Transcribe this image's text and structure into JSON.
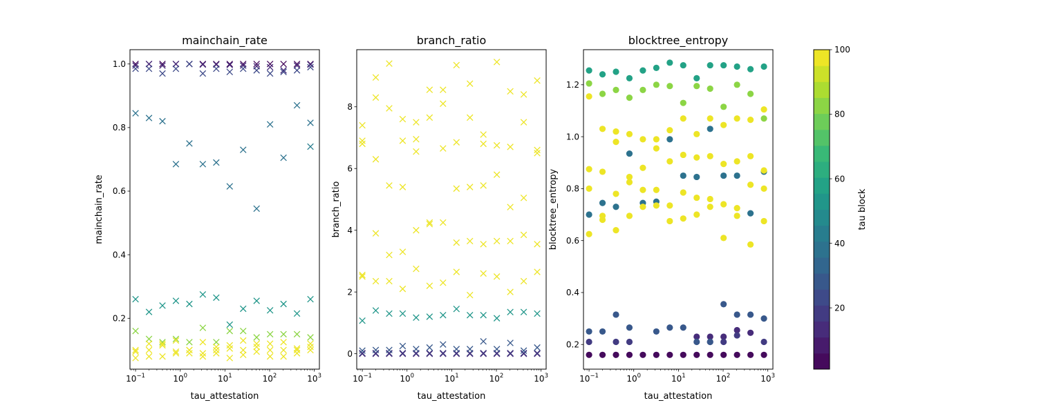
{
  "chart_data": [
    {
      "type": "scatter",
      "title": "mainchain_rate",
      "xlabel": "tau_attestation",
      "ylabel": "mainchain_rate",
      "xscale": "log",
      "xlim": [
        0.075,
        1300
      ],
      "ylim": [
        0.04,
        1.045
      ],
      "marker": "x",
      "x_ticks": [
        {
          "value": 0.1,
          "base": "10",
          "exp": "−1"
        },
        {
          "value": 1,
          "base": "10",
          "exp": "0"
        },
        {
          "value": 10,
          "base": "10",
          "exp": "1"
        },
        {
          "value": 100,
          "base": "10",
          "exp": "2"
        },
        {
          "value": 1000,
          "base": "10",
          "exp": "3"
        }
      ],
      "y_ticks": [
        {
          "value": 0.2,
          "label": "0.2"
        },
        {
          "value": 0.4,
          "label": "0.4"
        },
        {
          "value": 0.6,
          "label": "0.6"
        },
        {
          "value": 0.8,
          "label": "0.8"
        },
        {
          "value": 1.0,
          "label": "1.0"
        }
      ],
      "x": [
        0.1,
        0.2,
        0.4,
        0.8,
        1.6,
        3.2,
        6.4,
        12.8,
        25.6,
        51.2,
        102.4,
        204.8,
        409.6,
        819.2
      ],
      "series": [
        {
          "tau_block": 5,
          "values": [
            1.0,
            1.0,
            1.0,
            1.0,
            1.0,
            1.0,
            1.0,
            1.0,
            1.0,
            1.0,
            1.0,
            1.0,
            1.0,
            1.0
          ]
        },
        {
          "tau_block": 15,
          "values": [
            0.995,
            1.0,
            0.995,
            1.0,
            1.0,
            0.998,
            0.998,
            0.997,
            0.995,
            0.993,
            0.99,
            0.98,
            0.995,
            0.998
          ]
        },
        {
          "tau_block": 25,
          "values": [
            0.985,
            0.985,
            0.97,
            0.985,
            1.0,
            0.97,
            0.985,
            0.975,
            0.985,
            0.98,
            0.97,
            0.975,
            0.98,
            0.99
          ]
        },
        {
          "tau_block": 38,
          "values": [
            0.845,
            0.83,
            0.82,
            0.685,
            0.75,
            0.685,
            0.69,
            0.615,
            0.73,
            0.545,
            0.81,
            0.705,
            0.87,
            0.815
          ]
        },
        {
          "tau_block": 42,
          "values": [
            null,
            null,
            null,
            null,
            null,
            null,
            null,
            null,
            null,
            null,
            null,
            null,
            null,
            0.74
          ]
        },
        {
          "tau_block": 55,
          "values": [
            0.26,
            0.22,
            0.24,
            0.255,
            0.245,
            0.275,
            0.265,
            0.18,
            0.23,
            0.255,
            0.225,
            0.245,
            0.215,
            0.26
          ]
        },
        {
          "tau_block": 85,
          "values": [
            0.16,
            0.135,
            0.125,
            0.135,
            0.125,
            0.17,
            0.125,
            0.16,
            0.16,
            0.14,
            0.15,
            0.15,
            0.15,
            0.14
          ]
        },
        {
          "tau_block": 98,
          "values": [
            0.1,
            0.12,
            0.115,
            0.13,
            0.1,
            0.125,
            0.1,
            0.115,
            0.13,
            0.12,
            0.12,
            0.125,
            0.105,
            0.12
          ]
        },
        {
          "tau_block": 100,
          "values": [
            0.095,
            0.1,
            0.12,
            0.095,
            0.09,
            0.09,
            0.11,
            0.105,
            0.1,
            0.11,
            0.1,
            0.1,
            0.1,
            0.11
          ]
        },
        {
          "tau_block": 100,
          "values": [
            0.075,
            0.08,
            0.08,
            0.09,
            0.1,
            0.08,
            0.09,
            0.075,
            0.085,
            0.095,
            0.08,
            0.08,
            0.09,
            0.1
          ]
        }
      ]
    },
    {
      "type": "scatter",
      "title": "branch_ratio",
      "xlabel": "tau_attestation",
      "ylabel": "branch_ratio",
      "xscale": "log",
      "xlim": [
        0.075,
        1300
      ],
      "ylim": [
        -0.5,
        9.85
      ],
      "marker": "x",
      "x_ticks": [
        {
          "value": 0.1,
          "base": "10",
          "exp": "−1"
        },
        {
          "value": 1,
          "base": "10",
          "exp": "0"
        },
        {
          "value": 10,
          "base": "10",
          "exp": "1"
        },
        {
          "value": 100,
          "base": "10",
          "exp": "2"
        },
        {
          "value": 1000,
          "base": "10",
          "exp": "3"
        }
      ],
      "y_ticks": [
        {
          "value": 0,
          "label": "0"
        },
        {
          "value": 2,
          "label": "2"
        },
        {
          "value": 4,
          "label": "4"
        },
        {
          "value": 6,
          "label": "6"
        },
        {
          "value": 8,
          "label": "8"
        }
      ],
      "x": [
        0.1,
        0.2,
        0.4,
        0.8,
        1.6,
        3.2,
        6.4,
        12.8,
        25.6,
        51.2,
        102.4,
        204.8,
        409.6,
        819.2
      ],
      "series": [
        {
          "tau_block": 5,
          "values": [
            0.0,
            0.0,
            0.0,
            0.0,
            0.0,
            0.0,
            0.0,
            0.0,
            0.0,
            0.0,
            0.0,
            0.0,
            0.0,
            0.0
          ]
        },
        {
          "tau_block": 15,
          "values": [
            0.0,
            0.0,
            0.0,
            0.0,
            0.0,
            0.0,
            0.0,
            0.0,
            0.0,
            0.0,
            0.0,
            0.0,
            0.0,
            0.0
          ]
        },
        {
          "tau_block": 20,
          "values": [
            0.02,
            0.02,
            0.02,
            0.02,
            0.02,
            0.02,
            0.02,
            0.02,
            0.02,
            0.02,
            0.02,
            0.02,
            0.02,
            0.02
          ]
        },
        {
          "tau_block": 30,
          "values": [
            0.1,
            0.12,
            0.12,
            0.25,
            0.15,
            0.2,
            0.3,
            0.15,
            0.15,
            0.4,
            0.15,
            0.35,
            0.1,
            0.2
          ]
        },
        {
          "tau_block": 55,
          "values": [
            1.07,
            1.4,
            1.3,
            1.3,
            1.17,
            1.2,
            1.25,
            1.45,
            1.25,
            1.25,
            1.15,
            1.35,
            1.35,
            1.3
          ]
        },
        {
          "tau_block": 100,
          "values": [
            2.5,
            2.35,
            2.35,
            2.1,
            2.75,
            2.2,
            2.3,
            2.65,
            1.9,
            2.6,
            2.5,
            2.0,
            2.35,
            2.65
          ]
        },
        {
          "tau_block": 100,
          "values": [
            2.55,
            3.9,
            3.2,
            3.3,
            4.0,
            4.2,
            4.25,
            3.6,
            3.65,
            3.55,
            3.65,
            3.65,
            3.85,
            3.55
          ]
        },
        {
          "tau_block": 100,
          "values": [
            6.8,
            6.3,
            5.45,
            5.4,
            6.55,
            4.25,
            6.65,
            5.35,
            5.4,
            5.45,
            5.8,
            4.75,
            5.05,
            6.5
          ]
        },
        {
          "tau_block": 100,
          "values": [
            6.9,
            8.3,
            7.95,
            6.9,
            6.95,
            7.65,
            8.1,
            6.85,
            7.65,
            6.8,
            6.75,
            6.7,
            7.5,
            6.6
          ]
        },
        {
          "tau_block": 100,
          "values": [
            7.4,
            8.95,
            9.4,
            7.6,
            7.5,
            8.55,
            8.55,
            9.35,
            8.75,
            7.1,
            9.45,
            8.5,
            8.4,
            8.85
          ]
        }
      ]
    },
    {
      "type": "scatter",
      "title": "blocktree_entropy",
      "xlabel": "tau_attestation",
      "ylabel": "blocktree_entropy",
      "xscale": "log",
      "xlim": [
        0.075,
        1300
      ],
      "ylim": [
        0.105,
        1.335
      ],
      "marker": "o",
      "x_ticks": [
        {
          "value": 0.1,
          "base": "10",
          "exp": "−1"
        },
        {
          "value": 1,
          "base": "10",
          "exp": "0"
        },
        {
          "value": 10,
          "base": "10",
          "exp": "1"
        },
        {
          "value": 100,
          "base": "10",
          "exp": "2"
        },
        {
          "value": 1000,
          "base": "10",
          "exp": "3"
        }
      ],
      "y_ticks": [
        {
          "value": 0.2,
          "label": "0.2"
        },
        {
          "value": 0.4,
          "label": "0.4"
        },
        {
          "value": 0.6,
          "label": "0.6"
        },
        {
          "value": 0.8,
          "label": "0.8"
        },
        {
          "value": 1.0,
          "label": "1.0"
        },
        {
          "value": 1.2,
          "label": "1.2"
        }
      ],
      "x": [
        0.1,
        0.2,
        0.4,
        0.8,
        1.6,
        3.2,
        6.4,
        12.8,
        25.6,
        51.2,
        102.4,
        204.8,
        409.6,
        819.2
      ],
      "series": [
        {
          "tau_block": 5,
          "values": [
            0.16,
            0.16,
            0.16,
            0.16,
            0.16,
            0.16,
            0.16,
            0.16,
            0.16,
            0.16,
            0.16,
            0.16,
            0.16,
            0.16
          ]
        },
        {
          "tau_block": 12,
          "values": [
            null,
            null,
            null,
            null,
            null,
            null,
            null,
            null,
            0.23,
            0.23,
            0.23,
            0.255,
            0.245,
            null
          ]
        },
        {
          "tau_block": 18,
          "values": [
            0.21,
            null,
            0.21,
            0.21,
            null,
            null,
            null,
            null,
            null,
            0.21,
            0.21,
            0.235,
            null,
            0.21
          ]
        },
        {
          "tau_block": 30,
          "values": [
            0.25,
            0.25,
            0.315,
            0.265,
            null,
            0.25,
            0.265,
            0.265,
            0.21,
            0.21,
            0.355,
            0.315,
            0.315,
            0.3
          ]
        },
        {
          "tau_block": 40,
          "values": [
            0.7,
            0.745,
            0.73,
            0.935,
            0.745,
            0.75,
            0.99,
            0.85,
            0.845,
            1.03,
            0.85,
            0.85,
            0.705,
            0.865
          ]
        },
        {
          "tau_block": 60,
          "values": [
            1.255,
            1.24,
            1.25,
            1.225,
            1.255,
            1.265,
            1.285,
            1.275,
            1.225,
            1.275,
            1.275,
            1.27,
            1.26,
            1.27
          ]
        },
        {
          "tau_block": 85,
          "values": [
            1.205,
            1.165,
            1.18,
            1.15,
            1.18,
            1.2,
            1.195,
            1.13,
            1.195,
            1.185,
            1.115,
            1.2,
            1.165,
            1.07
          ]
        },
        {
          "tau_block": 100,
          "values": [
            1.155,
            1.03,
            1.02,
            1.01,
            0.99,
            0.99,
            1.025,
            1.07,
            1.01,
            1.07,
            1.045,
            1.07,
            1.065,
            1.105
          ]
        },
        {
          "tau_block": 100,
          "values": [
            0.875,
            0.865,
            0.98,
            0.845,
            0.88,
            0.955,
            0.905,
            0.93,
            0.92,
            0.925,
            0.895,
            0.905,
            0.925,
            0.87
          ]
        },
        {
          "tau_block": 100,
          "values": [
            0.8,
            0.695,
            0.78,
            0.825,
            0.795,
            0.795,
            0.735,
            0.785,
            0.765,
            0.76,
            0.74,
            0.725,
            0.815,
            0.8
          ]
        },
        {
          "tau_block": 100,
          "values": [
            0.625,
            0.68,
            0.64,
            0.695,
            0.73,
            0.735,
            0.675,
            0.685,
            0.7,
            0.73,
            0.61,
            0.695,
            0.585,
            0.675
          ]
        }
      ]
    }
  ],
  "colorbar": {
    "label": "tau block",
    "min": 1,
    "max": 100,
    "levels": 20,
    "ticks": [
      {
        "value": 20,
        "label": "20"
      },
      {
        "value": 40,
        "label": "40"
      },
      {
        "value": 60,
        "label": "60"
      },
      {
        "value": 80,
        "label": "80"
      },
      {
        "value": 100,
        "label": "100"
      }
    ],
    "colormap": "viridis",
    "colormap_stops": [
      "#440154",
      "#482878",
      "#3e4989",
      "#31688e",
      "#26828e",
      "#1f9e89",
      "#35b779",
      "#6ece58",
      "#b5de2b",
      "#fde725"
    ]
  }
}
